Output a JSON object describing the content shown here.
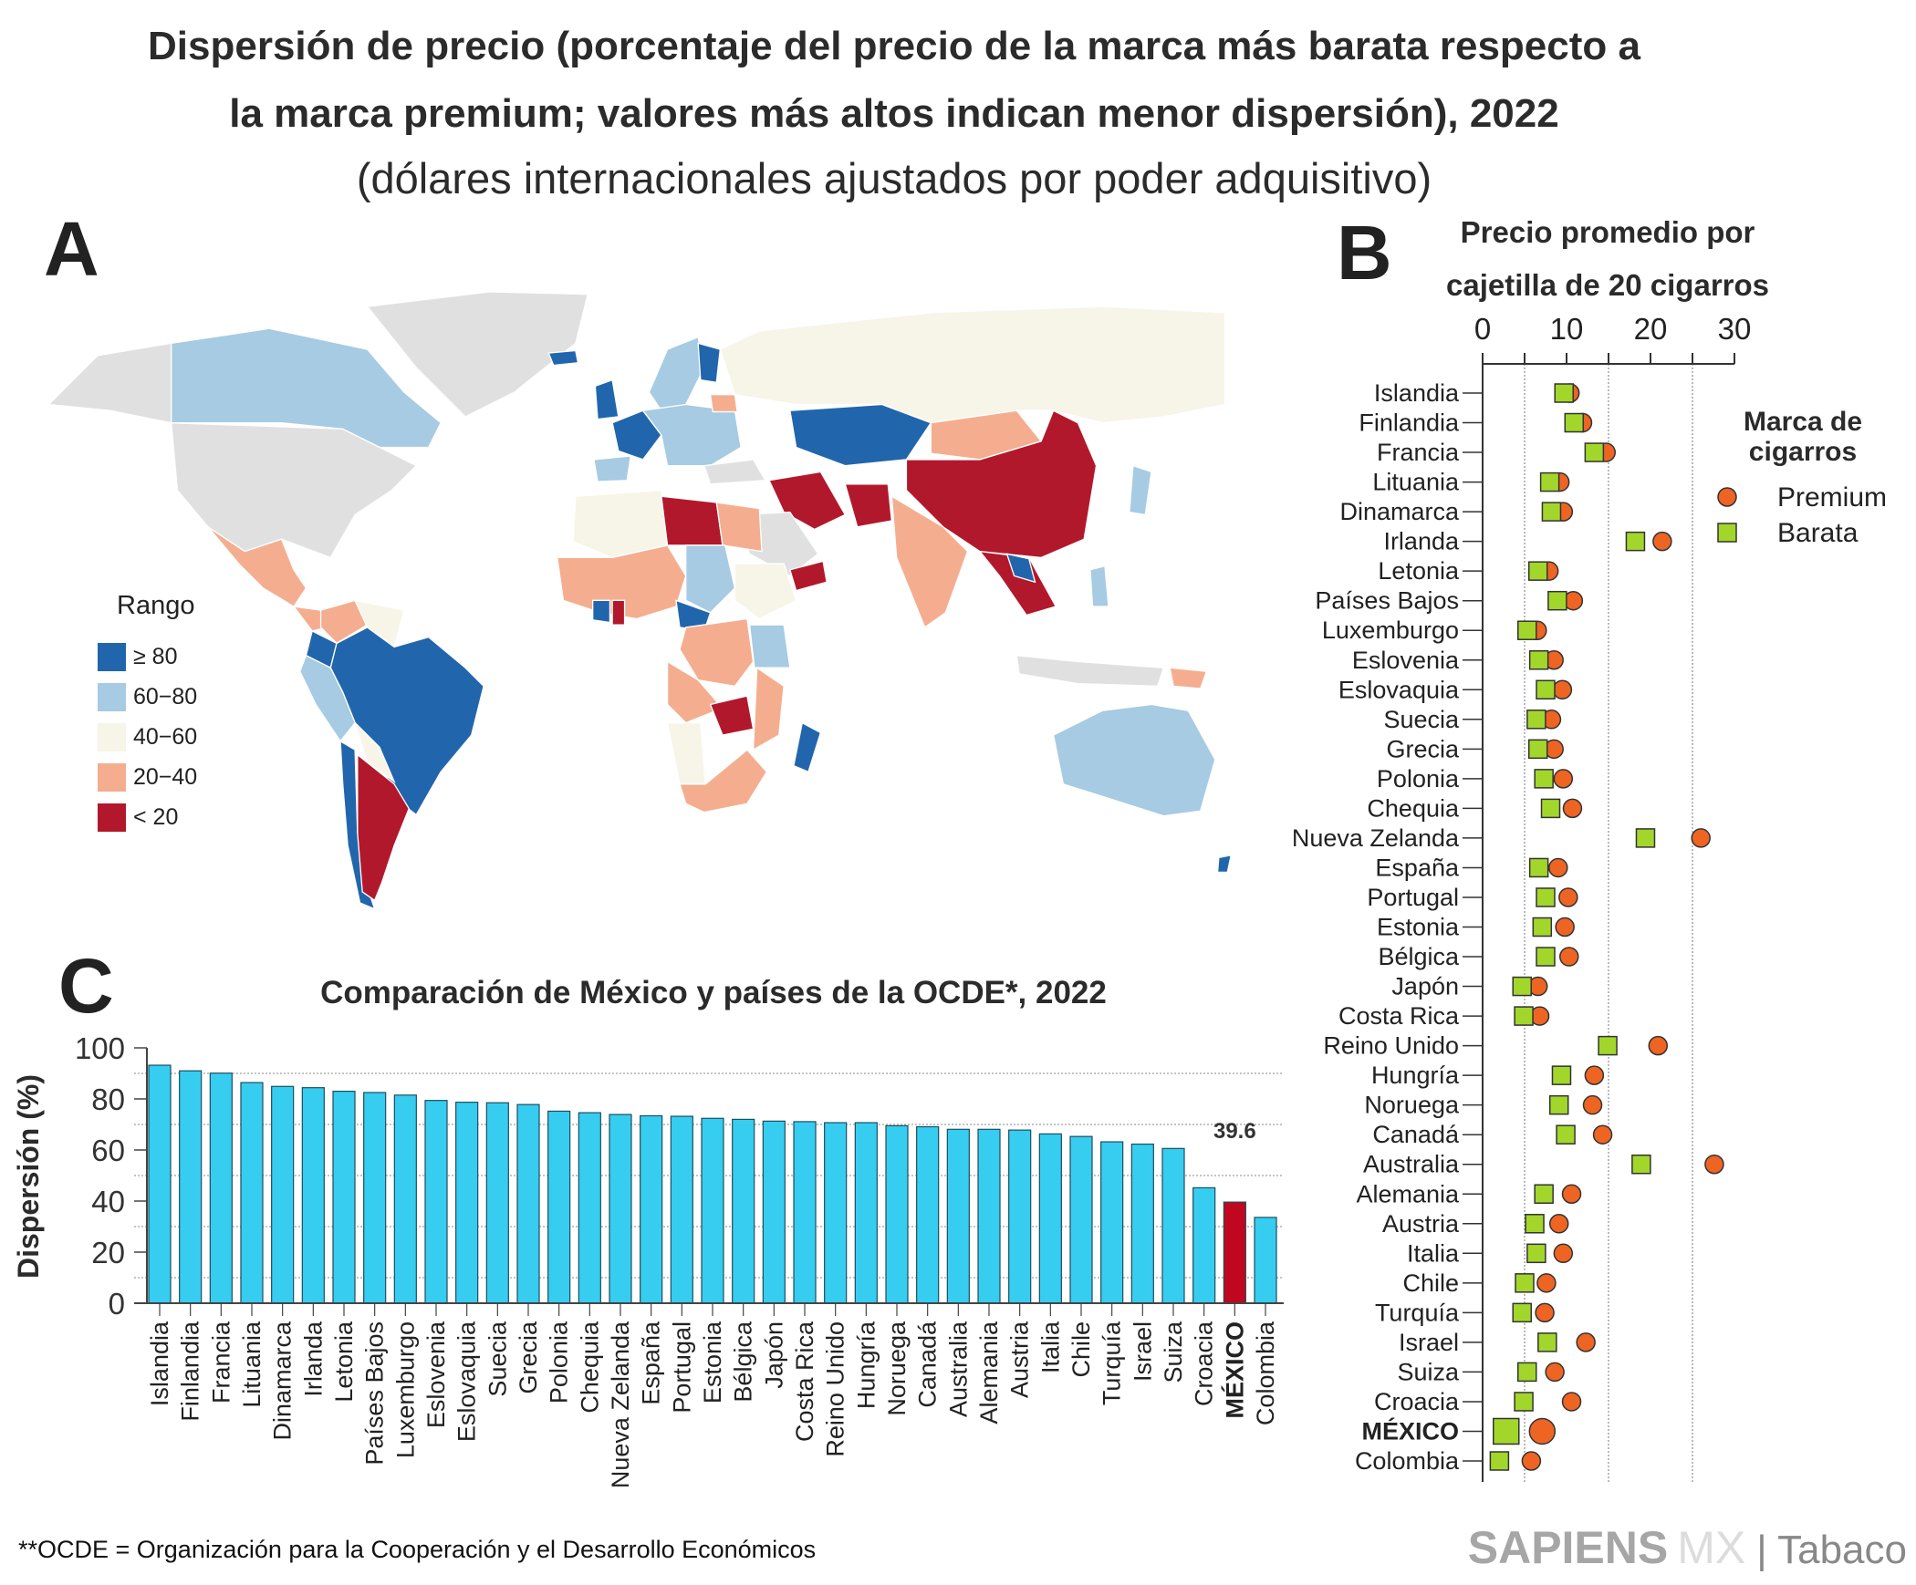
{
  "header": {
    "title_line1": "Dispersión de precio (porcentaje del precio de la marca más barata respecto a",
    "title_line2": "la marca premium; valores más altos indican menor dispersión), 2022",
    "subtitle": "(dólares internacionales ajustados por poder adquisitivo)"
  },
  "panels": {
    "a": "A",
    "b": "B",
    "c": "C"
  },
  "map": {
    "legend_title": "Rango",
    "legend": [
      {
        "label": "≥ 80",
        "color": "#2166ac"
      },
      {
        "label": "60−80",
        "color": "#a6cbe2"
      },
      {
        "label": "40−60",
        "color": "#f7f4e8"
      },
      {
        "label": "20−40",
        "color": "#f4ae8f"
      },
      {
        "label": "< 20",
        "color": "#b2182b"
      }
    ],
    "no_data_color": "#e0e0e0"
  },
  "chart_data": [
    {
      "type": "scatter",
      "title_line1": "Precio promedio por",
      "title_line2": "cajetilla de 20 cigarros",
      "xlim": [
        0,
        30
      ],
      "x_ticks": [
        "0",
        "10",
        "20",
        "30"
      ],
      "grid": "dotted vertical at 5, 15, 25",
      "legend_title_line1": "Marca de",
      "legend_title_line2": "cigarros",
      "legend_position": "top-right",
      "series": [
        {
          "name": "Premium",
          "marker": "circle",
          "color": "#ee6423"
        },
        {
          "name": "Barata",
          "marker": "square",
          "color": "#a3d62b"
        }
      ],
      "categories": [
        "Islandia",
        "Finlandia",
        "Francia",
        "Lituania",
        "Dinamarca",
        "Irlanda",
        "Letonia",
        "Países Bajos",
        "Luxemburgo",
        "Eslovenia",
        "Eslovaquia",
        "Suecia",
        "Grecia",
        "Polonia",
        "Chequia",
        "Nueva Zelanda",
        "España",
        "Portugal",
        "Estonia",
        "Bélgica",
        "Japón",
        "Costa Rica",
        "Reino Unido",
        "Hungría",
        "Noruega",
        "Canadá",
        "Australia",
        "Alemania",
        "Austria",
        "Italia",
        "Chile",
        "Turquía",
        "Israel",
        "Suiza",
        "Croacia",
        "MÉXICO",
        "Colombia"
      ],
      "premium": [
        10.4,
        11.9,
        14.7,
        9.2,
        9.6,
        21.4,
        7.9,
        10.8,
        6.5,
        8.5,
        9.5,
        8.2,
        8.5,
        9.6,
        10.7,
        26.0,
        9.0,
        10.2,
        9.8,
        10.3,
        6.6,
        6.8,
        20.9,
        13.3,
        13.1,
        14.3,
        27.6,
        10.6,
        9.1,
        9.6,
        7.6,
        7.4,
        12.3,
        8.6,
        10.6,
        7.1,
        5.8
      ],
      "barata": [
        9.7,
        10.9,
        13.3,
        8.0,
        8.2,
        18.2,
        6.6,
        8.9,
        5.3,
        6.7,
        7.5,
        6.4,
        6.6,
        7.3,
        8.1,
        19.4,
        6.7,
        7.5,
        7.1,
        7.5,
        4.7,
        4.9,
        14.9,
        9.4,
        9.1,
        9.9,
        18.9,
        7.3,
        6.2,
        6.4,
        5.0,
        4.7,
        7.7,
        5.3,
        4.9,
        2.8,
        2.0
      ],
      "highlight": "MÉXICO"
    },
    {
      "type": "bar",
      "title": "Comparación de México y países de la OCDE*, 2022",
      "ylabel": "Dispersión (%)",
      "ylim": [
        0,
        100
      ],
      "y_ticks": [
        "0",
        "20",
        "40",
        "60",
        "80",
        "100"
      ],
      "grid": "dotted horizontal at 10, 30, 50, 70, 90",
      "categories": [
        "Islandia",
        "Finlandia",
        "Francia",
        "Lituania",
        "Dinamarca",
        "Irlanda",
        "Letonia",
        "Países Bajos",
        "Luxemburgo",
        "Eslovenia",
        "Eslovaquia",
        "Suecia",
        "Grecia",
        "Polonia",
        "Chequia",
        "Nueva Zelanda",
        "España",
        "Portugal",
        "Estonia",
        "Bélgica",
        "Japón",
        "Costa Rica",
        "Reino Unido",
        "Hungría",
        "Noruega",
        "Canadá",
        "Australia",
        "Alemania",
        "Austria",
        "Italia",
        "Chile",
        "Turquía",
        "Israel",
        "Suiza",
        "Croacia",
        "MÉXICO",
        "Colombia"
      ],
      "values": [
        93.2,
        91.0,
        90.1,
        86.4,
        84.9,
        84.4,
        83.0,
        82.5,
        81.5,
        79.4,
        78.7,
        78.5,
        77.8,
        75.2,
        74.6,
        73.9,
        73.4,
        73.2,
        72.4,
        72.0,
        71.3,
        71.1,
        70.7,
        70.7,
        69.5,
        69.1,
        68.1,
        68.1,
        67.8,
        66.3,
        65.3,
        63.2,
        62.3,
        60.6,
        45.2,
        39.6,
        33.6
      ],
      "bar_color": "#36cdf0",
      "highlight": "MÉXICO",
      "highlight_color": "#c0071f",
      "annotation": "39.6"
    }
  ],
  "footer": {
    "note": "**OCDE = Organización para la Cooperación y el Desarrollo Económicos",
    "logo": {
      "brand": "SAPIENS",
      "suffix": "MX",
      "section": "| Tabaco"
    }
  }
}
